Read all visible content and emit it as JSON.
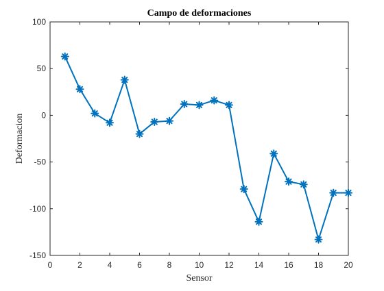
{
  "chart_data": {
    "type": "line",
    "title": "Campo de deformaciones",
    "xlabel": "Sensor",
    "ylabel": "Deformacion",
    "xlim": [
      0,
      20
    ],
    "ylim": [
      -150,
      100
    ],
    "xticks": [
      0,
      2,
      4,
      6,
      8,
      10,
      12,
      14,
      16,
      18,
      20
    ],
    "yticks": [
      100,
      50,
      0,
      -50,
      -100,
      -150
    ],
    "grid": false,
    "legend": false,
    "marker": "asterisk",
    "line_color": "#0072BD",
    "series": [
      {
        "x": [
          1,
          2,
          3,
          4,
          5,
          6,
          7,
          8,
          9,
          10,
          11,
          12,
          13,
          14,
          15,
          16,
          17,
          18,
          19,
          20
        ],
        "values": [
          63,
          28,
          2,
          -8,
          38,
          -20,
          -7,
          -6,
          12,
          11,
          16,
          11,
          -79,
          -114,
          -41,
          -71,
          -74,
          -133,
          -83,
          -83
        ]
      }
    ]
  }
}
